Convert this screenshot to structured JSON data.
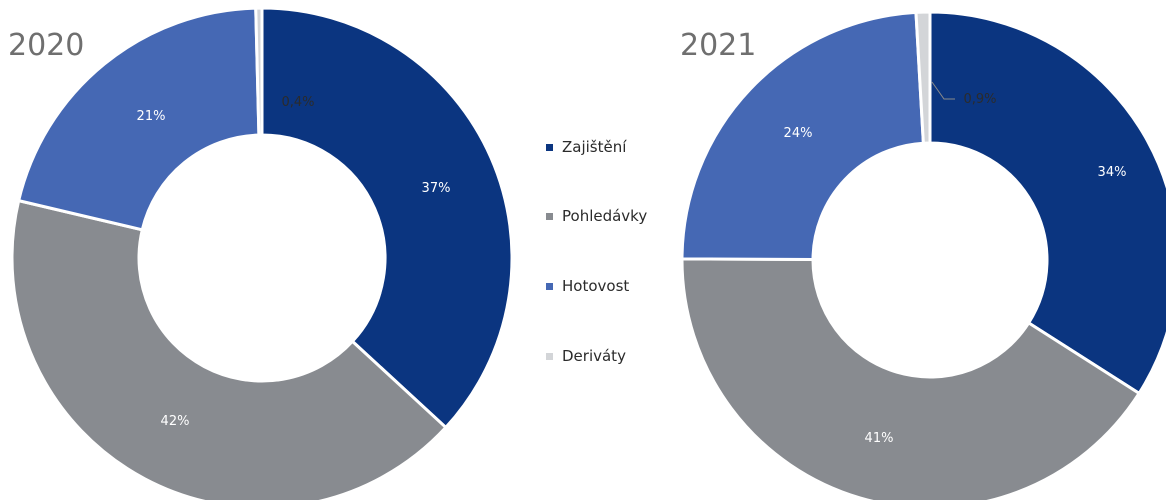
{
  "chart_data": [
    {
      "type": "donut",
      "title": "2020",
      "categories": [
        "Zajištění",
        "Pohledávky",
        "Hotovost",
        "Deriváty"
      ],
      "values": [
        37,
        42,
        21,
        0.4
      ],
      "labels": [
        "37%",
        "42%",
        "21%",
        "0,4%"
      ]
    },
    {
      "type": "donut",
      "title": "2021",
      "categories": [
        "Zajištění",
        "Pohledávky",
        "Hotovost",
        "Deriváty"
      ],
      "values": [
        34,
        41,
        24,
        0.9
      ],
      "labels": [
        "34%",
        "41%",
        "24%",
        "0,9%"
      ]
    }
  ],
  "legend": {
    "placement": "center",
    "items": [
      "Zajištění",
      "Pohledávky",
      "Hotovost",
      "Deriváty"
    ]
  },
  "colors": [
    "#0b3580",
    "#888b90",
    "#4568b4",
    "#d3d5d8"
  ],
  "label_colors": [
    "#ffffff",
    "#ffffff",
    "#ffffff",
    "#2b2b2b"
  ]
}
